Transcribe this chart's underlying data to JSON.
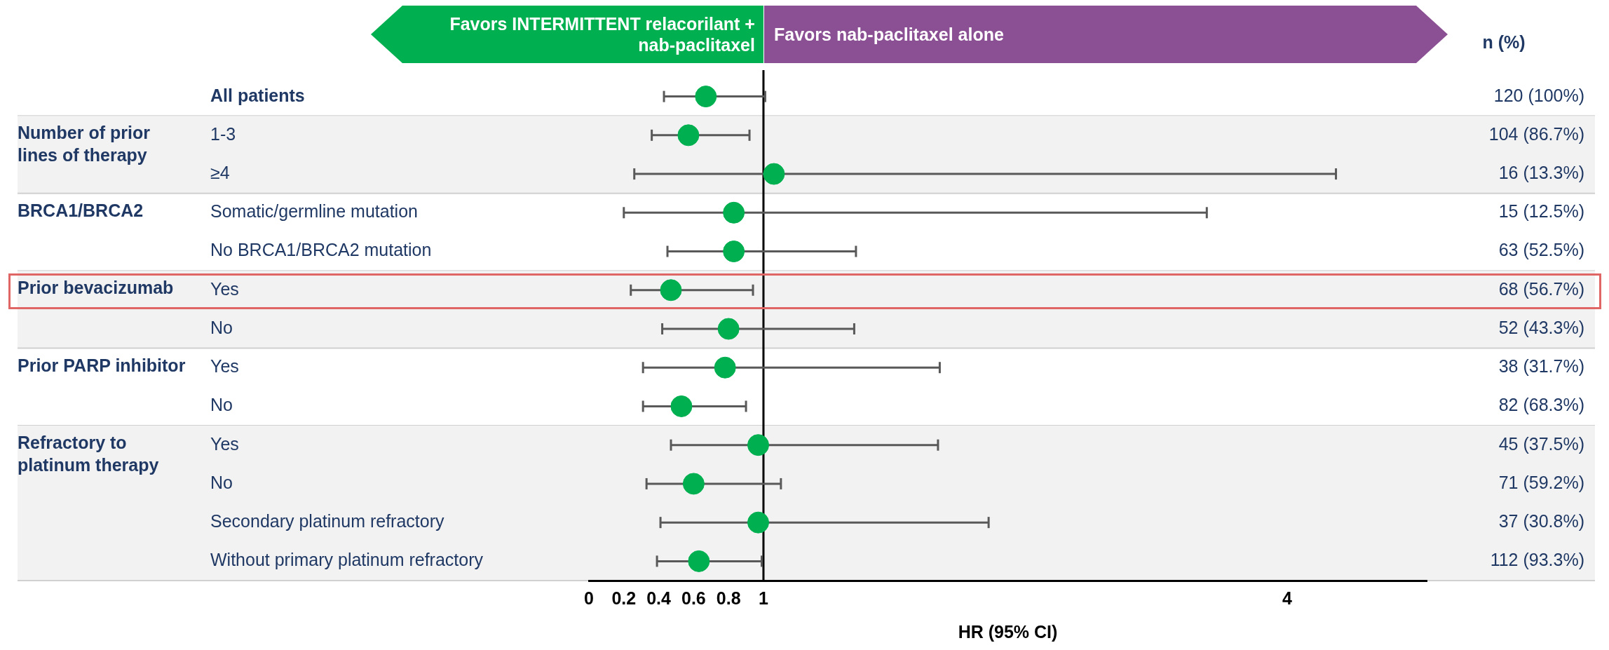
{
  "chart_data": {
    "type": "scatter",
    "orientation": "horizontal",
    "categories": [
      "All patients",
      "1-3",
      "≥4",
      "Somatic/germline mutation",
      "No BRCA1/BRCA2 mutation",
      "Yes",
      "No",
      "Yes",
      "No",
      "Yes",
      "No",
      "Secondary platinum refractory",
      "Without primary platinum refractory"
    ],
    "y2_categories": [
      "120 (100%)",
      "104 (86.7%)",
      "16 (13.3%)",
      "15 (12.5%)",
      "63 (52.5%)",
      "68 (56.7%)",
      "52 (43.3%)",
      "38 (31.7%)",
      "82 (68.3%)",
      "45 (37.5%)",
      "71 (59.2%)",
      "37 (30.8%)",
      "112 (93.3%)"
    ],
    "y2label": "n (%)",
    "series": [
      {
        "color": "#00b050",
        "values": [
          0.67,
          0.57,
          1.06,
          0.83,
          0.83,
          0.47,
          0.8,
          0.78,
          0.53,
          0.97,
          0.6,
          0.97,
          0.63
        ],
        "errors": [
          [
            0.43,
            1.01
          ],
          [
            0.36,
            0.92
          ],
          [
            0.26,
            4.28
          ],
          [
            0.2,
            3.54
          ],
          [
            0.45,
            1.53
          ],
          [
            0.24,
            0.94
          ],
          [
            0.42,
            1.52
          ],
          [
            0.31,
            2.01
          ],
          [
            0.31,
            0.9
          ],
          [
            0.47,
            2.0
          ],
          [
            0.33,
            1.1
          ],
          [
            0.41,
            2.29
          ],
          [
            0.39,
            0.99
          ]
        ]
      }
    ],
    "xlim": [
      0,
      4.8
    ],
    "xticks": [
      0,
      0.2,
      0.4,
      0.6,
      0.8,
      1,
      4
    ],
    "xlabel": "HR (95% CI)",
    "ref_lines": [
      {
        "axis": "x",
        "value": 1,
        "color": "#000000"
      }
    ],
    "annotations": [
      "Favors INTERMITTENT relacorilant + nab-paclitaxel",
      "Favors nab-paclitaxel alone",
      "Number of prior lines of therapy",
      "BRCA1/BRCA2",
      "Prior bevacizumab",
      "Prior PARP inhibitor",
      "Refractory to platinum therapy"
    ],
    "grid": false,
    "legend": false,
    "marker": "circle"
  }
}
